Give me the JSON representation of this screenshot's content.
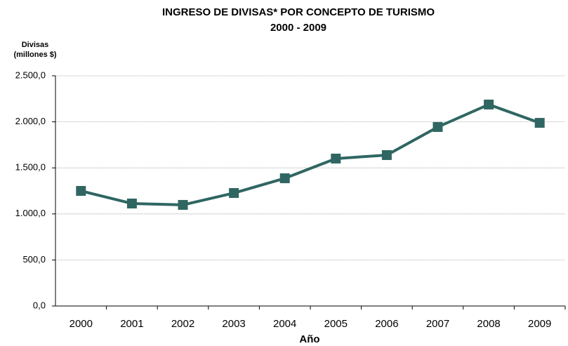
{
  "chart_data": {
    "type": "line",
    "title": "INGRESO DE DIVISAS* POR CONCEPTO DE TURISMO",
    "subtitle": "2000 - 2009",
    "y_label": [
      "Divisas",
      "(millones $)"
    ],
    "x_label": "Año",
    "categories": [
      "2000",
      "2001",
      "2002",
      "2003",
      "2004",
      "2005",
      "2006",
      "2007",
      "2008",
      "2009"
    ],
    "series": [
      {
        "color": "#2f6662",
        "values": [
          1250,
          1113,
          1098,
          1227,
          1387,
          1601,
          1639,
          1944,
          2188,
          1989
        ]
      }
    ],
    "ylim": [
      0,
      2500
    ],
    "yticks": [
      {
        "value": 0,
        "label": "0,0"
      },
      {
        "value": 500,
        "label": "500,0"
      },
      {
        "value": 1000,
        "label": "1.000,0"
      },
      {
        "value": 1500,
        "label": "1.500,0"
      },
      {
        "value": 2000,
        "label": "2.000,0"
      },
      {
        "value": 2500,
        "label": "2.500,0"
      }
    ],
    "grid": true
  }
}
